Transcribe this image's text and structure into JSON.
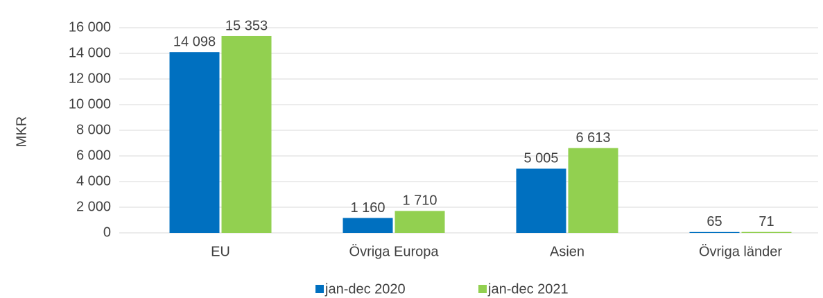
{
  "chart_data": {
    "type": "bar",
    "y_label": "MKR",
    "categories": [
      "EU",
      "Övriga Europa",
      "Asien",
      "Övriga länder"
    ],
    "series": [
      {
        "name": "jan-dec 2020",
        "color": "#0070c0",
        "values": [
          14098,
          1160,
          5005,
          65
        ],
        "value_labels": [
          "14 098",
          "1 160",
          "5 005",
          "65"
        ]
      },
      {
        "name": "jan-dec 2021",
        "color": "#92d050",
        "values": [
          15353,
          1710,
          6613,
          71
        ],
        "value_labels": [
          "15 353",
          "1 710",
          "6 613",
          "71"
        ]
      }
    ],
    "ylim": [
      0,
      16000
    ],
    "yticks": [
      0,
      {
        "value": 2000,
        "label": "2 000"
      },
      {
        "value": 4000,
        "label": "4 000"
      },
      {
        "value": 6000,
        "label": "6 000"
      },
      {
        "value": 8000,
        "label": "8 000"
      },
      {
        "value": 10000,
        "label": "10 000"
      },
      {
        "value": 12000,
        "label": "12 000"
      },
      {
        "value": 14000,
        "label": "14 000"
      },
      {
        "value": 16000,
        "label": "16 000"
      }
    ],
    "grid": true,
    "legend": "bottom"
  }
}
